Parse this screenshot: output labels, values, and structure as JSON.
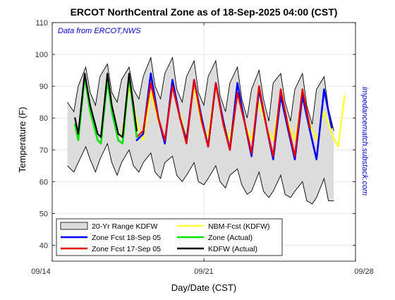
{
  "chart_data": {
    "type": "line",
    "title": "ERCOT NorthCentral Zone as of 18-Sep-2025 04:00 (CST)",
    "annotation": "Data from ERCOT,NWS",
    "watermark": "impedancematch.substack.com",
    "xlabel": "Day/Date (CST)",
    "ylabel": "Temperature (F)",
    "x_ticks": [
      "09/14",
      "09/21",
      "09/28"
    ],
    "x_range_days": [
      0,
      14
    ],
    "y_ticks": [
      40,
      50,
      60,
      70,
      80,
      90,
      100,
      110
    ],
    "ylim": [
      35,
      110
    ],
    "grid": true,
    "legend_position": "bottom-left",
    "colors": {
      "range_fill": "#dcdcdc",
      "range_edge": "#000000",
      "zone_fcst_18": "#0000ff",
      "zone_fcst_17": "#e60000",
      "nbm_fcst": "#ffff33",
      "zone_actual": "#00e600",
      "kdfw_actual": "#000000",
      "annotation": "#0000cc"
    },
    "legend": [
      {
        "label": "20-Yr Range KDFW",
        "kind": "patch",
        "color_key": "range_fill"
      },
      {
        "label": "NBM-Fcst (KDFW)",
        "kind": "line",
        "color_key": "nbm_fcst"
      },
      {
        "label": "Zone Fcst 18-Sep 05",
        "kind": "line",
        "color_key": "zone_fcst_18"
      },
      {
        "label": "Zone (Actual)",
        "kind": "line",
        "color_key": "zone_actual"
      },
      {
        "label": "Zone Fcst 17-Sep 05",
        "kind": "line",
        "color_key": "zone_fcst_17"
      },
      {
        "label": "KDFW (Actual)",
        "kind": "line",
        "color_key": "kdfw_actual"
      }
    ],
    "series": [
      {
        "name": "20-Yr Range KDFW",
        "kind": "band",
        "x": [
          0.7,
          1.0,
          1.2,
          1.55,
          1.75,
          2.0,
          2.2,
          2.55,
          2.75,
          3.0,
          3.2,
          3.55,
          3.75,
          4.0,
          4.2,
          4.55,
          4.75,
          5.0,
          5.2,
          5.55,
          5.75,
          6.0,
          6.2,
          6.55,
          6.75,
          7.0,
          7.2,
          7.55,
          7.75,
          8.0,
          8.2,
          8.55,
          8.75,
          9.0,
          9.2,
          9.55,
          9.75,
          10.0,
          10.2,
          10.55,
          10.75,
          11.0,
          11.2,
          11.55,
          11.75,
          12.0,
          12.2,
          12.55,
          12.75,
          13.0
        ],
        "upper": [
          85,
          82,
          90,
          96,
          88,
          84,
          93,
          97,
          88,
          85,
          92,
          96,
          89,
          86,
          93,
          99,
          90,
          86,
          94,
          99,
          89,
          85,
          93,
          98,
          88,
          84,
          93,
          98,
          87,
          82,
          91,
          96,
          86,
          80,
          89,
          95,
          86,
          79,
          91,
          94,
          85,
          79,
          89,
          94,
          84,
          78,
          89,
          93,
          83,
          76
        ],
        "lower": [
          65,
          63,
          66,
          71,
          67,
          63,
          67,
          72,
          66,
          62,
          66,
          70,
          65,
          63,
          66,
          69,
          63,
          61,
          66,
          68,
          62,
          60,
          62,
          66,
          60,
          59,
          61,
          65,
          60,
          58,
          62,
          64,
          59,
          56,
          57,
          63,
          57,
          55,
          57,
          62,
          56,
          55,
          57,
          60,
          54,
          53,
          55,
          61,
          54,
          54
        ]
      },
      {
        "name": "NBM-Fcst (KDFW)",
        "kind": "line",
        "color_key": "nbm_fcst",
        "width": 2.5,
        "x": [
          3.2,
          3.55,
          3.9,
          4.2,
          4.55,
          4.9,
          5.2,
          5.55,
          5.9,
          6.2,
          6.55,
          6.9,
          7.2,
          7.55,
          7.9,
          8.2,
          8.55,
          8.9,
          9.2,
          9.55,
          9.9,
          10.2,
          10.55,
          10.9,
          11.2,
          11.55,
          11.9,
          12.2,
          12.55,
          12.9,
          13.2,
          13.5
        ],
        "y": [
          74,
          90,
          79,
          73,
          88,
          79,
          73,
          90,
          81,
          74,
          90,
          78,
          74,
          90,
          79,
          73,
          89,
          78,
          73,
          85,
          77,
          73,
          87,
          78,
          73,
          86,
          78,
          73,
          82,
          75,
          71,
          87
        ]
      },
      {
        "name": "Zone Fcst 18-Sep 05",
        "kind": "line",
        "color_key": "zone_fcst_18",
        "width": 2.6,
        "x": [
          3.9,
          4.2,
          4.55,
          4.9,
          5.2,
          5.55,
          5.9,
          6.2,
          6.55,
          6.9,
          7.2,
          7.55,
          7.9,
          8.2,
          8.55,
          8.9,
          9.2,
          9.55,
          9.9,
          10.2,
          10.55,
          10.9,
          11.2,
          11.55,
          11.9,
          12.2,
          12.55,
          12.9
        ],
        "y": [
          73,
          75,
          94,
          80,
          72,
          92,
          80,
          73,
          92,
          80,
          71,
          91,
          79,
          70,
          91,
          78,
          68,
          89,
          77,
          67,
          87,
          76,
          67,
          87,
          76,
          67,
          89,
          77
        ]
      },
      {
        "name": "Zone Fcst 17-Sep 05",
        "kind": "line",
        "color_key": "zone_fcst_17",
        "width": 2.4,
        "x": [
          3.9,
          4.2,
          4.55,
          4.9,
          5.2,
          5.55,
          5.9,
          6.2,
          6.55,
          6.9,
          7.2,
          7.55,
          7.9,
          8.2,
          8.55,
          8.9,
          9.2,
          9.55,
          9.9,
          10.2,
          10.55,
          10.9,
          11.2,
          11.55,
          11.9
        ],
        "y": [
          74,
          76,
          91,
          80,
          73,
          90,
          80,
          72,
          92,
          79,
          71,
          91,
          78,
          70,
          88,
          78,
          69,
          90,
          77,
          68,
          89,
          77,
          68,
          89,
          77
        ]
      },
      {
        "name": "Zone (Actual)",
        "kind": "line",
        "color_key": "zone_actual",
        "width": 2.6,
        "x": [
          1.05,
          1.2,
          1.5,
          1.75,
          2.1,
          2.25,
          2.55,
          2.75,
          3.05,
          3.25,
          3.55,
          3.75,
          3.9
        ],
        "y": [
          78,
          73,
          93,
          82,
          73,
          72,
          92,
          82,
          73,
          72,
          93,
          82,
          74
        ]
      },
      {
        "name": "KDFW (Actual)",
        "kind": "line",
        "color_key": "kdfw_actual",
        "width": 2.2,
        "x": [
          1.05,
          1.2,
          1.5,
          1.75,
          2.1,
          2.25,
          2.55,
          2.75,
          3.05,
          3.25,
          3.55,
          3.75,
          3.9
        ],
        "y": [
          80,
          75,
          94,
          84,
          75,
          74,
          94,
          84,
          75,
          74,
          94,
          84,
          76
        ]
      }
    ]
  }
}
